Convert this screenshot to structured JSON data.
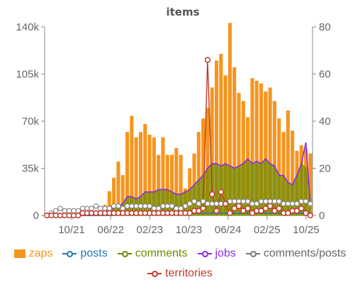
{
  "chart_data": {
    "type": "bar",
    "title": "items",
    "x_ticks": [
      "10/21",
      "06/22",
      "02/23",
      "10/23",
      "06/24",
      "02/25",
      "10/25"
    ],
    "y_left": {
      "ticks": [
        "0",
        "35k",
        "70k",
        "105k",
        "140k"
      ],
      "range": [
        0,
        140000
      ]
    },
    "y_right": {
      "ticks": [
        "0",
        "20",
        "40",
        "60",
        "80"
      ],
      "range": [
        0,
        80
      ]
    },
    "months": 60,
    "series": [
      {
        "name": "zaps",
        "kind": "bar",
        "axis": "left",
        "color": "#f5951f",
        "values": [
          0,
          0,
          0,
          0,
          0,
          0,
          0,
          0,
          0,
          0,
          0,
          0,
          3000,
          8000,
          18000,
          28000,
          40000,
          30000,
          62000,
          74000,
          58000,
          62000,
          68000,
          60000,
          58000,
          45000,
          58000,
          45000,
          45000,
          50000,
          45000,
          20000,
          35000,
          46000,
          62000,
          72000,
          80000,
          95000,
          115000,
          120000,
          104000,
          143000,
          110000,
          91000,
          85000,
          73000,
          102000,
          100000,
          98000,
          92000,
          95000,
          85000,
          72000,
          62000,
          78000,
          63000,
          48000,
          52000,
          50000,
          46000
        ]
      },
      {
        "name": "comments",
        "kind": "area",
        "axis": "right",
        "color": "#6b8a00",
        "values": [
          0,
          0,
          0,
          0,
          0,
          0,
          0,
          0,
          0,
          0,
          0,
          0,
          1,
          2,
          3,
          3,
          4,
          5,
          8,
          8,
          7,
          8,
          10,
          10,
          10,
          11,
          11,
          11,
          10,
          9,
          9,
          10,
          11,
          13,
          15,
          17,
          20,
          22,
          22,
          21,
          22,
          21,
          20,
          21,
          22,
          24,
          22,
          23,
          22,
          24,
          22,
          21,
          17,
          17,
          14,
          13,
          17,
          22,
          20,
          8
        ]
      },
      {
        "name": "jobs",
        "kind": "line",
        "axis": "right",
        "color": "#8a2be2",
        "values": [
          0,
          0,
          0,
          0,
          0,
          0,
          0,
          0,
          0,
          0,
          0,
          0,
          1,
          2,
          3,
          3,
          4,
          5,
          8,
          8,
          7,
          8,
          10,
          10,
          10,
          11,
          11,
          11,
          10,
          9,
          9,
          10,
          11,
          13,
          15,
          17,
          20,
          22,
          22,
          21,
          22,
          21,
          20,
          21,
          22,
          24,
          22,
          23,
          22,
          24,
          22,
          21,
          17,
          17,
          14,
          13,
          17,
          22,
          31,
          5
        ]
      },
      {
        "name": "posts",
        "kind": "line",
        "axis": "right",
        "color": "#1f77b4",
        "values": [
          0,
          0,
          0,
          0,
          0,
          0,
          0,
          0,
          0,
          0,
          0,
          0,
          0,
          0,
          0,
          0,
          1,
          1,
          1,
          1,
          1,
          1,
          1,
          1,
          1,
          1,
          1,
          1,
          1,
          1,
          1,
          1,
          1,
          1,
          1,
          1,
          1,
          1,
          1,
          1,
          1,
          1,
          1,
          1,
          1,
          1,
          1,
          1,
          1,
          1,
          1,
          1,
          1,
          1,
          1,
          1,
          1,
          1,
          1,
          1
        ]
      },
      {
        "name": "comments/posts",
        "kind": "line-dots",
        "axis": "right",
        "color": "#777777",
        "values": [
          0,
          1,
          2,
          3,
          2,
          2,
          2,
          2,
          3,
          3,
          3,
          4,
          3,
          3,
          3,
          4,
          4,
          3,
          4,
          4,
          4,
          4,
          4,
          4,
          3,
          3,
          4,
          4,
          4,
          3,
          3,
          4,
          5,
          6,
          5,
          6,
          5,
          5,
          5,
          5,
          5,
          6,
          6,
          6,
          6,
          6,
          5,
          5,
          6,
          6,
          6,
          6,
          6,
          5,
          5,
          5,
          5,
          6,
          6,
          5
        ]
      },
      {
        "name": "territories",
        "kind": "line-dots",
        "axis": "right",
        "color": "#c0392b",
        "values": [
          0,
          0,
          0,
          0,
          0,
          0,
          0,
          0,
          1,
          1,
          1,
          1,
          1,
          1,
          1,
          1,
          1,
          1,
          1,
          1,
          1,
          1,
          1,
          1,
          1,
          1,
          1,
          1,
          1,
          1,
          1,
          1,
          1,
          2,
          2,
          3,
          66,
          9,
          2,
          10,
          5,
          1,
          3,
          4,
          2,
          3,
          1,
          2,
          2,
          3,
          4,
          2,
          3,
          1,
          1,
          2,
          2,
          3,
          1,
          0
        ]
      }
    ],
    "legend": {
      "placement": "bottom",
      "order": [
        "zaps",
        "posts",
        "comments",
        "jobs",
        "comments/posts",
        "territories"
      ]
    }
  }
}
